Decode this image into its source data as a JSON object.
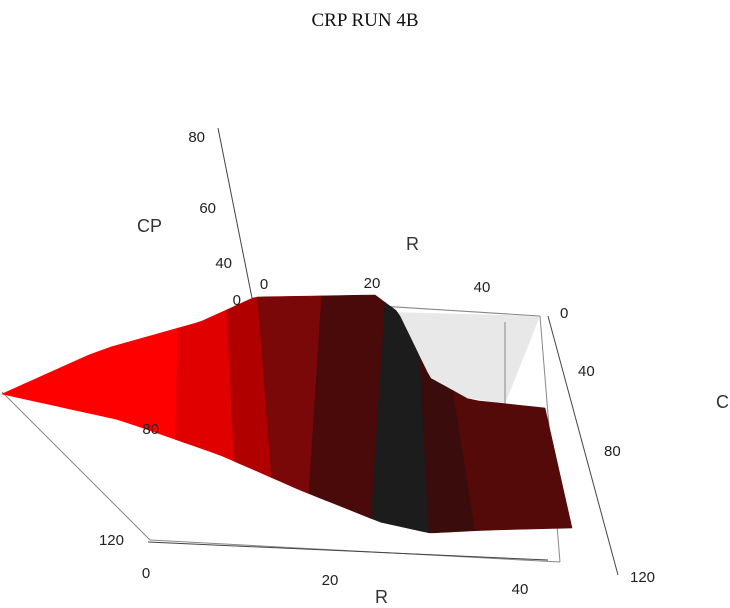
{
  "chart_data": {
    "type": "surface",
    "title": "CRP RUN 4B",
    "xlabel": "R",
    "ylabel": "C",
    "zlabel": "CP",
    "x_ticks_front": [
      "0",
      "20",
      "40"
    ],
    "x_ticks_back": [
      "0",
      "20",
      "40"
    ],
    "y_ticks_right": [
      "0",
      "40",
      "80",
      "120"
    ],
    "y_ticks_left": [
      "80",
      "120"
    ],
    "z_ticks": [
      "0",
      "40",
      "60",
      "80"
    ],
    "xlim": [
      0,
      45
    ],
    "ylim": [
      0,
      120
    ],
    "zlim": [
      0,
      80
    ],
    "colormap": [
      "#ff0000",
      "#e00000",
      "#b00000",
      "#7a0808",
      "#4a0a0a",
      "#1c1c1c",
      "#3a0c0c",
      "#550a0a"
    ],
    "bands_along_R": [
      {
        "r_start": 0,
        "r_end": 10,
        "color": "#ff0000"
      },
      {
        "r_start": 10,
        "r_end": 14,
        "color": "#e00000"
      },
      {
        "r_start": 14,
        "r_end": 17,
        "color": "#b00000"
      },
      {
        "r_start": 17,
        "r_end": 20,
        "color": "#7a0808"
      },
      {
        "r_start": 20,
        "r_end": 25,
        "color": "#4a0a0a"
      },
      {
        "r_start": 25,
        "r_end": 32,
        "color": "#1c1c1c"
      },
      {
        "r_start": 32,
        "r_end": 37,
        "color": "#3a0c0c"
      },
      {
        "r_start": 37,
        "r_end": 45,
        "color": "#550a0a"
      }
    ]
  }
}
